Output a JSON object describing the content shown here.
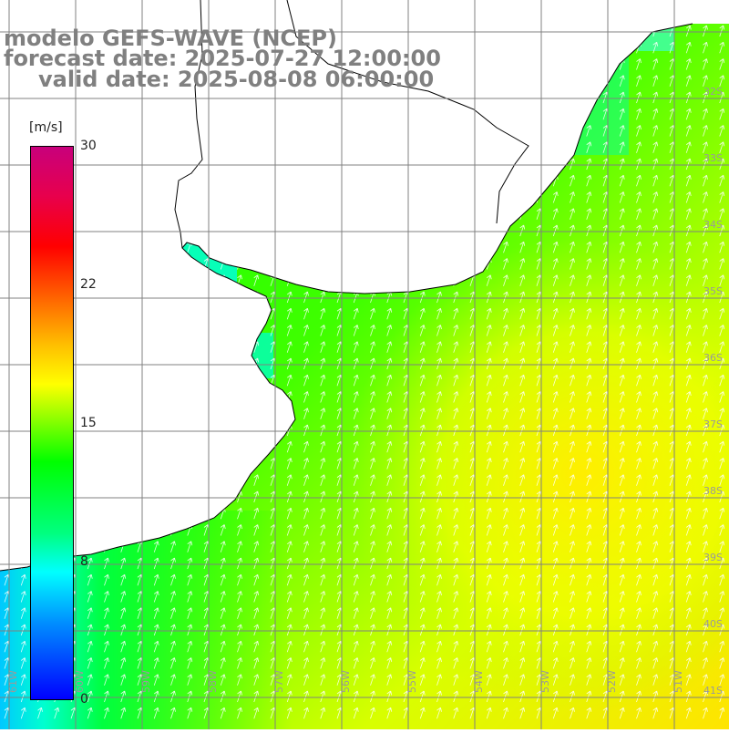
{
  "titles": {
    "line1": "modelo GEFS-WAVE (NCEP)",
    "line2": "forecast date: 2025-07-27 12:00:00",
    "line3": "valid date: 2025-08-08 06:00:00"
  },
  "colorbar": {
    "unit": "[m/s]",
    "ticks": [
      "30",
      "22",
      "15",
      "8",
      "0"
    ],
    "range": [
      0,
      30
    ],
    "colors": [
      "#0000ff",
      "#00ffff",
      "#00ff00",
      "#ffff00",
      "#ff0000",
      "#c8007c"
    ]
  },
  "map": {
    "lat_labels": [
      "32S",
      "33S",
      "34S",
      "35S",
      "36S",
      "37S",
      "38S",
      "39S",
      "40S",
      "41S"
    ],
    "lon_labels": [
      "61W",
      "60W",
      "59W",
      "58W",
      "57W",
      "56W",
      "55W",
      "54W",
      "53W",
      "52W",
      "51W"
    ],
    "field": "wind speed with direction arrows",
    "ocean_color_low": "#00ff00",
    "ocean_color_high": "#ffff00",
    "land_color": "#ffffff",
    "grid_color": "#808080"
  }
}
